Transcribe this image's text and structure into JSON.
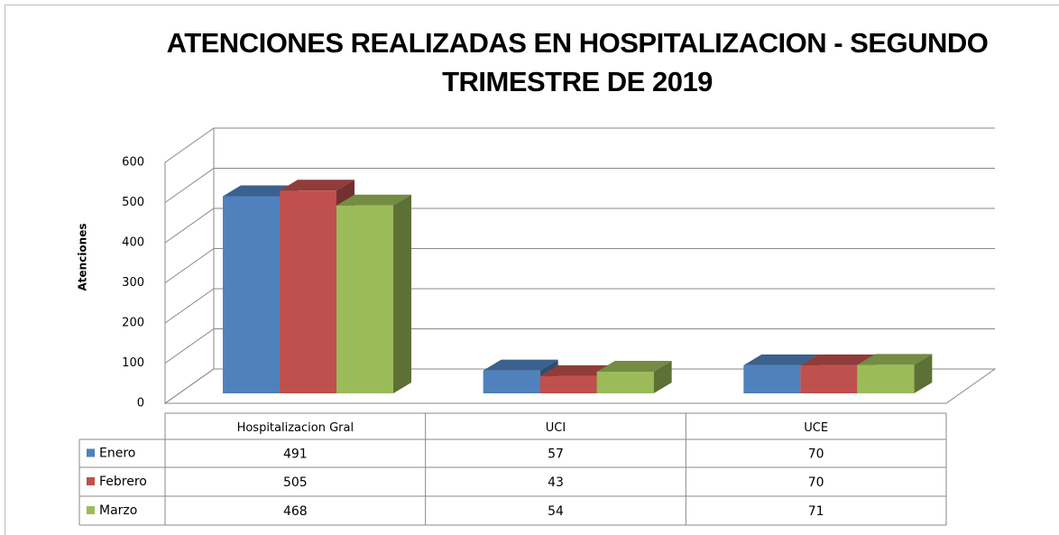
{
  "chart_data": {
    "type": "bar",
    "title": "ATENCIONES REALIZADAS EN HOSPITALIZACION - SEGUNDO TRIMESTRE DE 2019",
    "y_label": "Atenciones",
    "categories": [
      "Hospitalizacion Gral",
      "UCI",
      "UCE"
    ],
    "series": [
      {
        "name": "Enero",
        "color": "#4f81bd",
        "values": [
          491,
          57,
          70
        ]
      },
      {
        "name": "Febrero",
        "color": "#c0504d",
        "values": [
          505,
          43,
          70
        ]
      },
      {
        "name": "Marzo",
        "color": "#9bbb59",
        "values": [
          468,
          54,
          71
        ]
      }
    ],
    "ylim": [
      0,
      600
    ],
    "yticks": [
      0,
      100,
      200,
      300,
      400,
      500,
      600
    ],
    "grid": true
  }
}
